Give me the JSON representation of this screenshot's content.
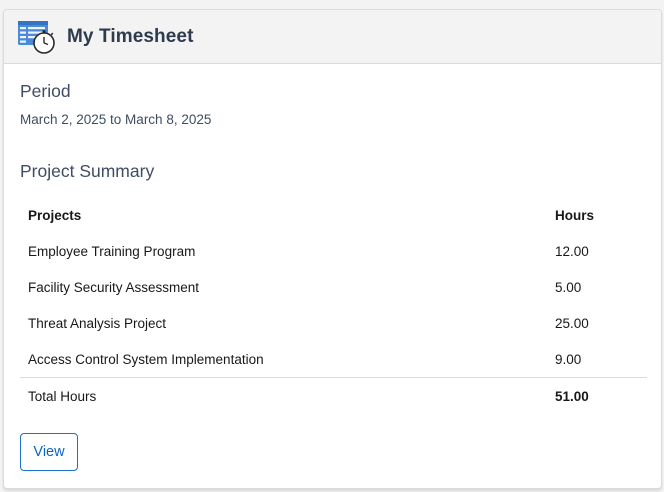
{
  "header": {
    "icon": "timesheet-stopwatch-icon",
    "title": "My Timesheet"
  },
  "period": {
    "heading": "Period",
    "value": "March 2, 2025 to March 8, 2025"
  },
  "summary": {
    "heading": "Project Summary",
    "columns": [
      "Projects",
      "Hours"
    ],
    "rows": [
      {
        "project": "Employee Training Program",
        "hours": "12.00"
      },
      {
        "project": "Facility Security Assessment",
        "hours": "5.00"
      },
      {
        "project": "Threat Analysis Project",
        "hours": "25.00"
      },
      {
        "project": "Access Control System Implementation",
        "hours": "9.00"
      }
    ],
    "total_label": "Total Hours",
    "total_value": "51.00"
  },
  "actions": {
    "view_label": "View"
  },
  "colors": {
    "accent": "#0b64c0",
    "icon_blue": "#4a8ad8",
    "header_bg": "#f3f3f3",
    "heading_text": "#2e3b4e"
  }
}
